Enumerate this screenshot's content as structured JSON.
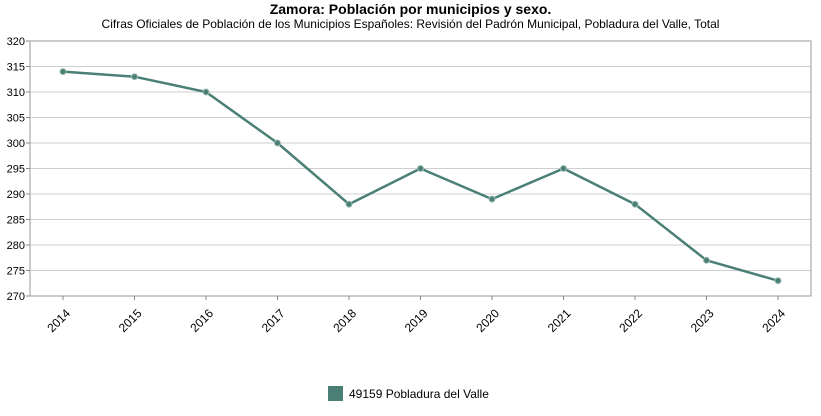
{
  "chart_data": {
    "type": "line",
    "title": "Zamora: Población por municipios y sexo.",
    "subtitle": "Cifras Oficiales de Población de los Municipios Españoles: Revisión del Padrón Municipal, Pobladura del Valle, Total",
    "x": [
      "2014",
      "2015",
      "2016",
      "2017",
      "2018",
      "2019",
      "2020",
      "2021",
      "2022",
      "2023",
      "2024"
    ],
    "series": [
      {
        "name": "49159 Pobladura del Valle",
        "color": "#4a7f76",
        "values": [
          314,
          313,
          310,
          300,
          288,
          295,
          289,
          295,
          288,
          277,
          273
        ]
      }
    ],
    "ylim": [
      270,
      320
    ],
    "yticks": [
      270,
      275,
      280,
      285,
      290,
      295,
      300,
      305,
      310,
      315,
      320
    ],
    "grid": true,
    "legend_position": "bottom"
  }
}
